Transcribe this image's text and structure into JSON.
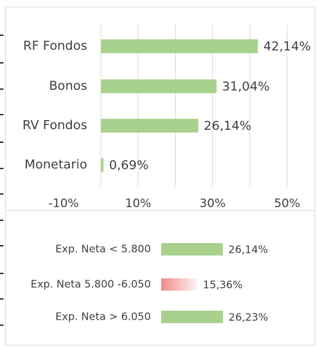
{
  "chart_data": [
    {
      "type": "bar",
      "orientation": "horizontal",
      "categories": [
        "RF Fondos",
        "Bonos",
        "RV Fondos",
        "Monetario"
      ],
      "values": [
        42.14,
        31.04,
        26.14,
        0.69
      ],
      "value_labels": [
        "42,14%",
        "31,04%",
        "26,14%",
        "0,69%"
      ],
      "colors": [
        "#a9d18e",
        "#a9d18e",
        "#a9d18e",
        "#a9d18e"
      ],
      "xlim": [
        -10,
        50
      ],
      "xticks": [
        {
          "value": -10,
          "label": "-10%"
        },
        {
          "value": 10,
          "label": "10%"
        },
        {
          "value": 30,
          "label": "30%"
        },
        {
          "value": 50,
          "label": "50%"
        }
      ],
      "minor_xticks": [
        0,
        20,
        40
      ],
      "grid": true
    },
    {
      "type": "bar",
      "orientation": "horizontal",
      "categories": [
        "Exp. Neta < 5.800",
        "Exp. Neta 5.800 -6.050",
        "Exp. Neta > 6.050"
      ],
      "values": [
        26.14,
        15.36,
        26.23
      ],
      "value_labels": [
        "26,14%",
        "15,36%",
        "26,23%"
      ],
      "colors": [
        "#a9d18e",
        "#f28b8b",
        "#a9d18e"
      ],
      "gradient": [
        false,
        true,
        false
      ],
      "xlim": [
        0,
        52
      ],
      "grid": false
    }
  ]
}
